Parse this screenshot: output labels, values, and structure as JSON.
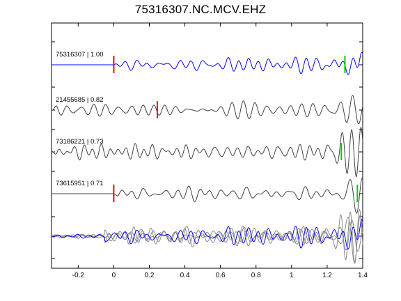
{
  "chart_data": {
    "type": "line",
    "title": "75316307.NC.MCV.EHZ",
    "xlabel": "",
    "ylabel": "",
    "xlim": [
      -0.35,
      1.4
    ],
    "x_ticks": [
      "-0.2",
      "0",
      "0.2",
      "0.4",
      "0.6",
      "0.8",
      "1",
      "1.2",
      "1.4"
    ],
    "x_tick_values": [
      -0.2,
      0,
      0.2,
      0.4,
      0.6,
      0.8,
      1.0,
      1.2,
      1.4
    ],
    "grid": false,
    "legend": "none",
    "colors": {
      "reference": "#0000ff",
      "other": "#404040",
      "stack": "#888888",
      "pick_red": "#ff0000",
      "pick_green": "#00cc00"
    },
    "traces": [
      {
        "label": "75316307 | 1.00",
        "color": "reference",
        "start": 0.0,
        "red_pick": 0.0,
        "green_pick": 1.3,
        "seed": 1
      },
      {
        "label": "21455685 | 0.82",
        "color": "other",
        "start": -0.35,
        "red_pick": 0.245,
        "green_pick": null,
        "seed": 2
      },
      {
        "label": "73186221 | 0.73",
        "color": "other",
        "start": -0.35,
        "red_pick": null,
        "green_pick": 1.28,
        "seed": 3
      },
      {
        "label": "73615951 | 0.71",
        "color": "other",
        "start": 0.0,
        "red_pick": 0.0,
        "green_pick": 1.37,
        "seed": 4
      }
    ]
  }
}
